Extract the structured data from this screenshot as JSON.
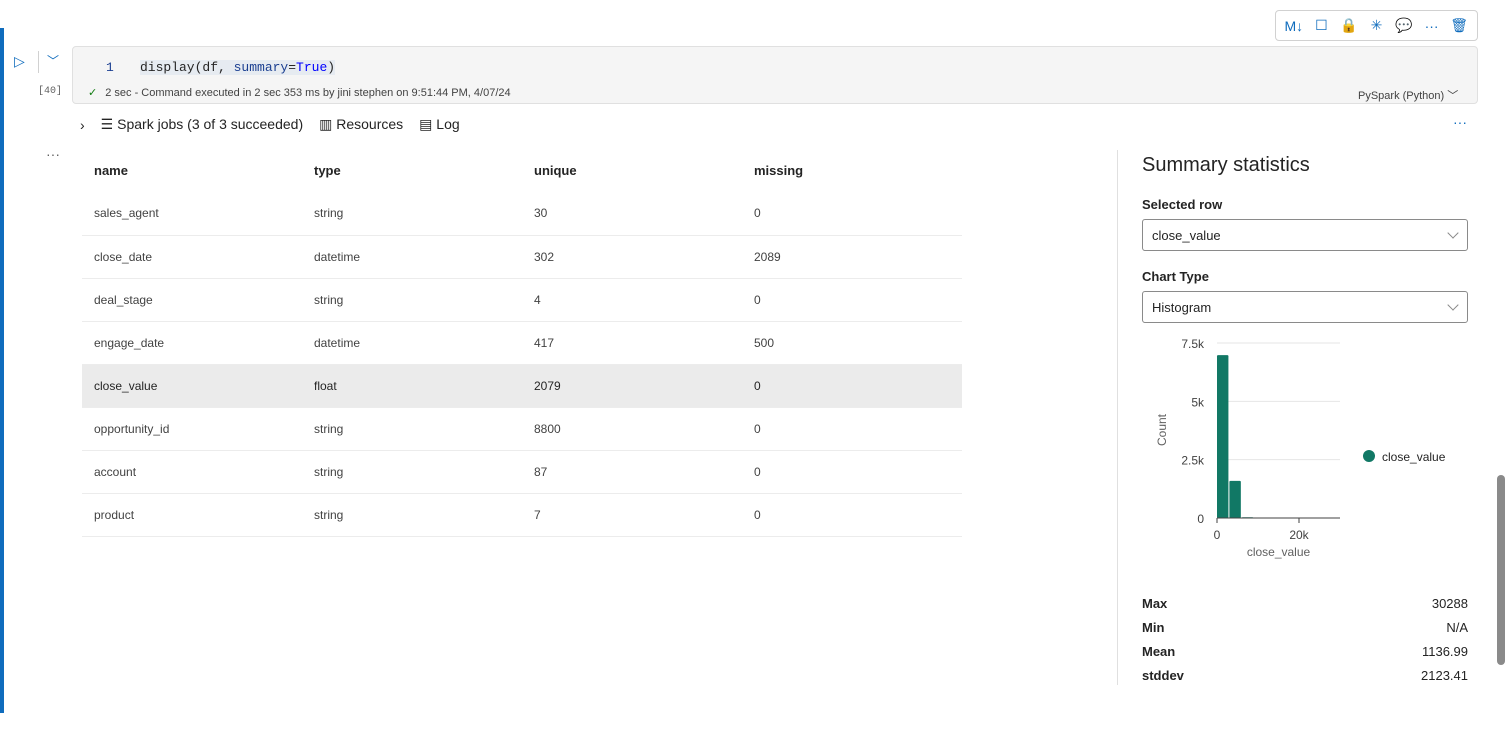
{
  "toolbar": {
    "items": [
      {
        "name": "markdown-icon",
        "glyph": "M↓"
      },
      {
        "name": "clear-output-icon",
        "glyph": "☐"
      },
      {
        "name": "lock-icon",
        "glyph": "🔒"
      },
      {
        "name": "freeze-icon",
        "glyph": "✳"
      },
      {
        "name": "comment-icon",
        "glyph": "💬"
      },
      {
        "name": "more-icon",
        "glyph": "···"
      },
      {
        "name": "delete-icon",
        "glyph": "🗑"
      }
    ]
  },
  "cell": {
    "exec_count": "[40]",
    "line_number": "1",
    "code_fn": "display(df, ",
    "code_kw": "summary",
    "code_eq": "=",
    "code_val": "True",
    "code_end": ")",
    "status_time": "2 sec",
    "status_text": " - Command executed in 2 sec 353 ms by jini stephen on 9:51:44 PM, 4/07/24",
    "language": "PySpark (Python)"
  },
  "output": {
    "spark_jobs": "Spark jobs (3 of 3 succeeded)",
    "resources": "Resources",
    "log": "Log"
  },
  "table": {
    "columns": [
      "name",
      "type",
      "unique",
      "missing"
    ],
    "rows": [
      [
        "sales_agent",
        "string",
        "30",
        "0"
      ],
      [
        "close_date",
        "datetime",
        "302",
        "2089"
      ],
      [
        "deal_stage",
        "string",
        "4",
        "0"
      ],
      [
        "engage_date",
        "datetime",
        "417",
        "500"
      ],
      [
        "close_value",
        "float",
        "2079",
        "0"
      ],
      [
        "opportunity_id",
        "string",
        "8800",
        "0"
      ],
      [
        "account",
        "string",
        "87",
        "0"
      ],
      [
        "product",
        "string",
        "7",
        "0"
      ]
    ],
    "selected_index": 4
  },
  "summary": {
    "title": "Summary statistics",
    "selected_row_label": "Selected row",
    "selected_row": "close_value",
    "chart_type_label": "Chart Type",
    "chart_type": "Histogram",
    "stats": [
      {
        "label": "Max",
        "value": "30288"
      },
      {
        "label": "Min",
        "value": "N/A"
      },
      {
        "label": "Mean",
        "value": "1136.99"
      },
      {
        "label": "stddev",
        "value": "2123.41"
      }
    ]
  },
  "chart_data": {
    "type": "bar",
    "xlabel": "close_value",
    "ylabel": "Count",
    "ylim": [
      0,
      7500
    ],
    "xlim": [
      0,
      30288
    ],
    "yticks": [
      "0",
      "2.5k",
      "5k",
      "7.5k"
    ],
    "xticks": [
      "0",
      "20k"
    ],
    "grid": true,
    "legend": "right",
    "series": [
      {
        "name": "close_value",
        "color": "#117865",
        "bin_width": 3028.8,
        "values": [
          6980,
          1590,
          30,
          5,
          3,
          2,
          1,
          1,
          1,
          1
        ]
      }
    ]
  }
}
